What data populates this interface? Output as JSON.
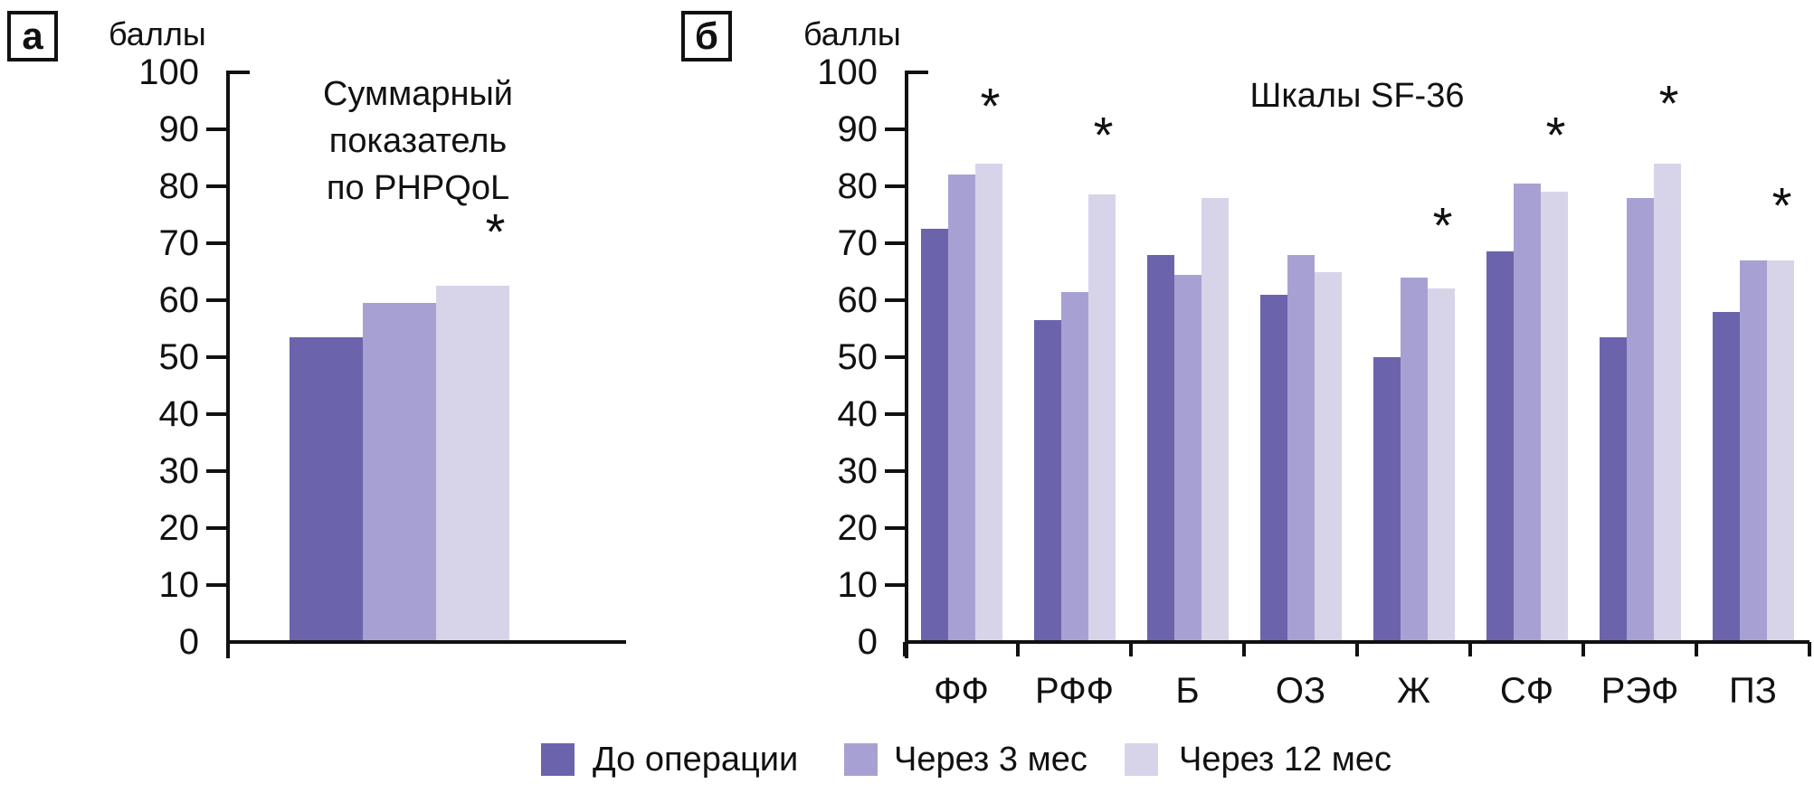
{
  "legend": {
    "items": [
      {
        "label": "До операции",
        "color": "#6B64AC"
      },
      {
        "label": "Через 3 мес",
        "color": "#A7A1D3"
      },
      {
        "label": "Через 12 мес",
        "color": "#D7D4EA"
      }
    ]
  },
  "chart_data": [
    {
      "type": "bar",
      "panel_label": "а",
      "title_lines": [
        "Суммарный",
        "показатель",
        "по PHPQoL"
      ],
      "ylabel": "баллы",
      "ylim": [
        0,
        100
      ],
      "ytick_step": 10,
      "grid": false,
      "categories": [
        ""
      ],
      "series": [
        {
          "name": "До операции",
          "color": "#6B64AC",
          "values": [
            53.5
          ]
        },
        {
          "name": "Через 3 мес",
          "color": "#A7A1D3",
          "values": [
            59.5
          ]
        },
        {
          "name": "Через 12 мес",
          "color": "#D7D4EA",
          "values": [
            62.5
          ]
        }
      ],
      "significance": [
        {
          "category_index": 0,
          "series_index": 2,
          "marker": "*",
          "at_value": 71
        }
      ]
    },
    {
      "type": "bar",
      "panel_label": "б",
      "title_lines": [
        "Шкалы SF-36"
      ],
      "ylabel": "баллы",
      "ylim": [
        0,
        100
      ],
      "ytick_step": 10,
      "grid": false,
      "categories": [
        "ФФ",
        "РФФ",
        "Б",
        "ОЗ",
        "Ж",
        "СФ",
        "РЭФ",
        "ПЗ"
      ],
      "series": [
        {
          "name": "До операции",
          "color": "#6B64AC",
          "values": [
            72.5,
            56.5,
            68,
            61,
            50,
            68.5,
            53.5,
            58
          ]
        },
        {
          "name": "Через 3 мес",
          "color": "#A7A1D3",
          "values": [
            82,
            61.5,
            64.5,
            68,
            64,
            80.5,
            78,
            67
          ]
        },
        {
          "name": "Через 12 мес",
          "color": "#D7D4EA",
          "values": [
            84,
            78.5,
            78,
            65,
            62,
            79,
            84,
            67
          ]
        }
      ],
      "significance": [
        {
          "category_index": 0,
          "series_index": 2,
          "marker": "*",
          "at_value": 93
        },
        {
          "category_index": 1,
          "series_index": 2,
          "marker": "*",
          "at_value": 88
        },
        {
          "category_index": 4,
          "series_index": 2,
          "marker": "*",
          "at_value": 72
        },
        {
          "category_index": 5,
          "series_index": 2,
          "marker": "*",
          "at_value": 88
        },
        {
          "category_index": 6,
          "series_index": 2,
          "marker": "*",
          "at_value": 93.5
        },
        {
          "category_index": 7,
          "series_index": 2,
          "marker": "*",
          "at_value": 75.5
        }
      ]
    }
  ]
}
